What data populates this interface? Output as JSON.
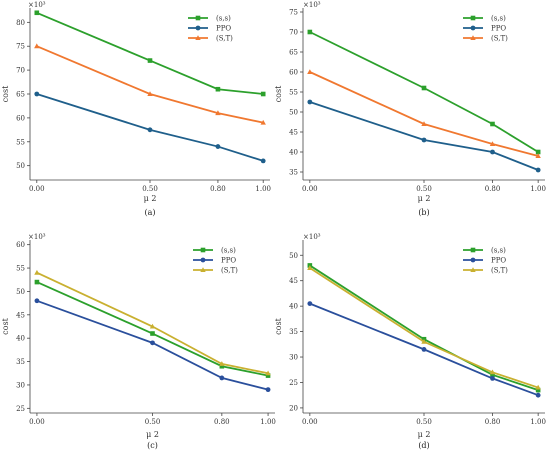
{
  "chart_data": [
    {
      "type": "line",
      "caption": "(a)",
      "scale_label": "×10³",
      "xlabel": "μ 2",
      "ylabel": "cost",
      "x": [
        0.0,
        0.5,
        0.8,
        1.0
      ],
      "xtick_labels": [
        "0.00",
        "0.50",
        "0.80",
        "1.00"
      ],
      "ylim": [
        47,
        83
      ],
      "yticks": [
        50,
        55,
        60,
        65,
        70,
        75,
        80
      ],
      "legend_position": "top-right",
      "series": [
        {
          "name": "(s,s)",
          "color": "#2ca02c",
          "marker": "square",
          "values": [
            82,
            72,
            66,
            65
          ]
        },
        {
          "name": "PPO",
          "color": "#1f5f8b",
          "marker": "circle",
          "values": [
            65,
            57.5,
            54,
            51
          ]
        },
        {
          "name": "(S,T)",
          "color": "#f07830",
          "marker": "triangle",
          "values": [
            75,
            65,
            61,
            59
          ]
        }
      ]
    },
    {
      "type": "line",
      "caption": "(b)",
      "scale_label": "×10³",
      "xlabel": "μ 2",
      "ylabel": "cost",
      "x": [
        0.0,
        0.5,
        0.8,
        1.0
      ],
      "xtick_labels": [
        "0.00",
        "0.50",
        "0.80",
        "1.00"
      ],
      "ylim": [
        33,
        76
      ],
      "yticks": [
        35,
        40,
        45,
        50,
        55,
        60,
        65,
        70,
        75
      ],
      "legend_position": "top-right",
      "series": [
        {
          "name": "(s,s)",
          "color": "#2ca02c",
          "marker": "square",
          "values": [
            70,
            56,
            47,
            40
          ]
        },
        {
          "name": "PPO",
          "color": "#1f5f8b",
          "marker": "circle",
          "values": [
            52.5,
            43,
            40,
            35.5
          ]
        },
        {
          "name": "(S,T)",
          "color": "#f07830",
          "marker": "triangle",
          "values": [
            60,
            47,
            42,
            39
          ]
        }
      ]
    },
    {
      "type": "line",
      "caption": "(c)",
      "scale_label": "×10³",
      "xlabel": "μ 2",
      "ylabel": "cost",
      "x": [
        0.0,
        0.5,
        0.8,
        1.0
      ],
      "xtick_labels": [
        "0.00",
        "0.50",
        "0.80",
        "1.00"
      ],
      "ylim": [
        24,
        61
      ],
      "yticks": [
        25,
        30,
        35,
        40,
        45,
        50,
        55,
        60
      ],
      "legend_position": "top-right",
      "series": [
        {
          "name": "(s,s)",
          "color": "#2ca02c",
          "marker": "square",
          "values": [
            52,
            41,
            34,
            32
          ]
        },
        {
          "name": "PPO",
          "color": "#2a4f9c",
          "marker": "circle",
          "values": [
            48,
            39,
            31.5,
            29
          ]
        },
        {
          "name": "(S,T)",
          "color": "#c9b030",
          "marker": "triangle",
          "values": [
            54,
            42.5,
            34.5,
            32.5
          ]
        }
      ]
    },
    {
      "type": "line",
      "caption": "(d)",
      "scale_label": "×10³",
      "xlabel": "μ 2",
      "ylabel": "cost",
      "x": [
        0.0,
        0.5,
        0.8,
        1.0
      ],
      "xtick_labels": [
        "0.00",
        "0.50",
        "0.80",
        "1.00"
      ],
      "ylim": [
        19,
        53
      ],
      "yticks": [
        20,
        25,
        30,
        35,
        40,
        45,
        50
      ],
      "legend_position": "top-right",
      "series": [
        {
          "name": "(s,s)",
          "color": "#2ca02c",
          "marker": "square",
          "values": [
            48,
            33.5,
            26.5,
            23.5
          ]
        },
        {
          "name": "PPO",
          "color": "#2a4f9c",
          "marker": "circle",
          "values": [
            40.5,
            31.5,
            25.8,
            22.5
          ]
        },
        {
          "name": "(S,T)",
          "color": "#c9b030",
          "marker": "triangle",
          "values": [
            47.5,
            33,
            27,
            24
          ]
        }
      ]
    }
  ]
}
